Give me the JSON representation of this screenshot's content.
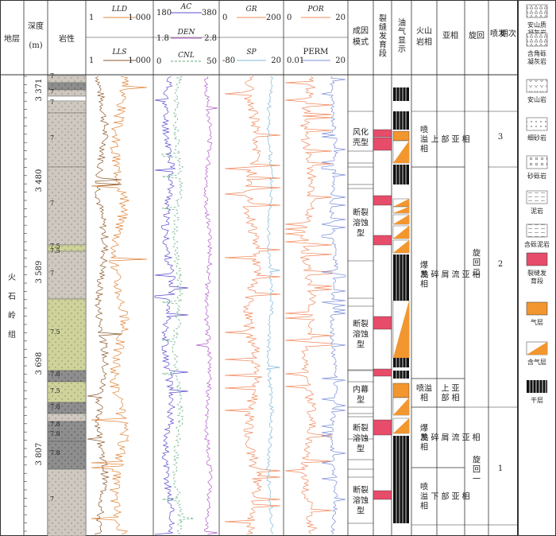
{
  "header": {
    "formation": "地层",
    "depth": "深度\n(m)",
    "depth_l1": "深度",
    "depth_l2": "(m)",
    "lithology": "岩性",
    "genesis_l1": "成因",
    "genesis_l2": "模式",
    "fracture": "裂缝发育段",
    "oilgas": "油气显示",
    "volcanic_facies_l1": "火山",
    "volcanic_facies_l2": "岩相",
    "subfacies": "亚相",
    "cycle": "旋回",
    "eruption": "喷发期次"
  },
  "curve_headers": {
    "track1": [
      {
        "name": "LLD",
        "min": "1",
        "max": "1 000",
        "color": "#e0863a"
      },
      {
        "name": "LLS",
        "min": "1",
        "max": "1 000",
        "color": "#8b5a2b"
      }
    ],
    "track2": [
      {
        "name": "AC",
        "min": "180",
        "max": "380",
        "color": "#5b4fcf"
      },
      {
        "name": "DEN",
        "min": "1.8",
        "max": "2.8",
        "color": "#b05cc8"
      },
      {
        "name": "CNL",
        "min": "0",
        "max": "50",
        "color": "#5fae7a"
      }
    ],
    "track3": [
      {
        "name": "GR",
        "min": "0",
        "max": "200",
        "color": "#f08a5d"
      },
      {
        "name": "SP",
        "min": "-80",
        "max": "20",
        "color": "#7fb8d8"
      }
    ],
    "track4": [
      {
        "name": "POR",
        "min": "0",
        "max": "20",
        "color": "#f08a5d"
      },
      {
        "name": "PERM",
        "min": "0.01",
        "max": "20",
        "color": "#7b8fd8"
      }
    ]
  },
  "formation_name": "火\n石\n岭\n组",
  "formation_chars": [
    "火",
    "石",
    "岭",
    "组"
  ],
  "depth_labels": [
    "3 371",
    "3 480",
    "3 589",
    "3 698",
    "3 807"
  ],
  "lith_codes": [
    "7",
    "7",
    "7",
    "7",
    "7",
    "7.5",
    "7.5",
    "7",
    "7.5",
    "7.8",
    "7.5",
    "7.8",
    "7.8",
    "7.8",
    "7.8",
    "7"
  ],
  "genesis_models": [
    "风化\n壳型",
    "断裂\n溶蚀\n型",
    "断裂\n溶蚀\n型",
    "内幕\n型",
    "断裂\n溶蚀\n型",
    "断裂\n溶蚀\n型"
  ],
  "volcanic_facies": [
    "喷\n溢\n相",
    "爆\n发\n相",
    "喷溢\n相",
    "爆\n发\n相",
    "喷\n溢\n相"
  ],
  "subfacies": [
    "上\n部\n亚\n相",
    "热\n碎\n屑\n流\n亚\n相",
    "上部\n亚相",
    "热\n碎\n屑\n流\n亚\n相",
    "下\n部\n亚\n相"
  ],
  "cycles": [
    "旋\n回\n二",
    "旋\n回\n一"
  ],
  "eruptions": [
    "3",
    "2",
    "1"
  ],
  "legend": [
    {
      "label": "安山质凝灰岩",
      "icon": "andesitic-tuff"
    },
    {
      "label": "含角砾凝灰岩",
      "icon": "breccia-tuff"
    },
    {
      "label": "安山岩",
      "icon": "andesite"
    },
    {
      "label": "细砂岩",
      "icon": "fine-sandstone"
    },
    {
      "label": "砂砾岩",
      "icon": "glutenite"
    },
    {
      "label": "泥岩",
      "icon": "mudstone"
    },
    {
      "label": "含砾泥岩",
      "icon": "pebbly-mudstone"
    },
    {
      "label": "裂缝发育段",
      "icon": "fracture-zone"
    },
    {
      "label": "气层",
      "icon": "gas-layer"
    },
    {
      "label": "含气层",
      "icon": "gas-bearing-layer"
    },
    {
      "label": "干层",
      "icon": "dry-layer"
    }
  ],
  "colors": {
    "fracture": "#e74c6a",
    "gas": "#f2962f",
    "tuff": "#c8c0b8",
    "tuff_green": "#c9ce95",
    "dark_band": "#8a8a8a"
  }
}
